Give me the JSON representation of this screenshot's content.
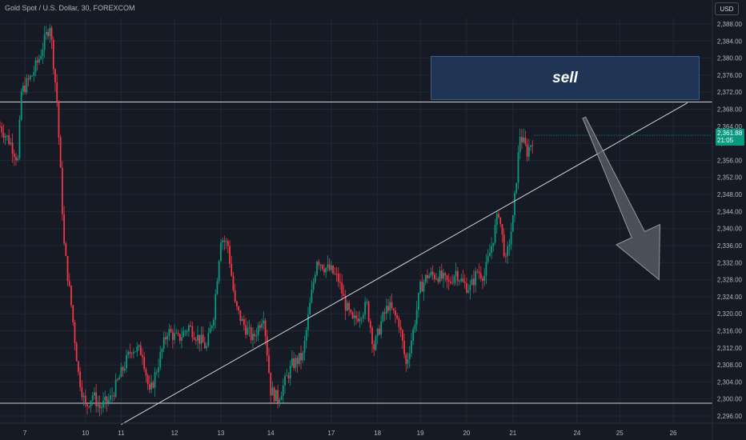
{
  "header": {
    "title": "Gold Spot / U.S. Dollar, 30, FOREXCOM",
    "currency_button": "USD"
  },
  "price_badge": {
    "price": "2,361.88",
    "countdown": "21:05"
  },
  "annotations": {
    "sell_label": "sell"
  },
  "colors": {
    "background": "#161a25",
    "grid": "#232733",
    "up": "#089981",
    "down": "#f23645",
    "axis_text": "#b2b5be",
    "sell_zone": "#203455",
    "arrow": "#5d6168",
    "price_line": "#089981"
  },
  "chart_data": {
    "type": "candlestick",
    "symbol": "Gold Spot / U.S. Dollar",
    "interval": "30",
    "source": "FOREXCOM",
    "y_ticks": [
      "2,388.00",
      "2,384.00",
      "2,380.00",
      "2,376.00",
      "2,372.00",
      "2,368.00",
      "2,364.00",
      "2,360.00",
      "2,356.00",
      "2,352.00",
      "2,348.00",
      "2,344.00",
      "2,340.00",
      "2,336.00",
      "2,332.00",
      "2,328.00",
      "2,324.00",
      "2,320.00",
      "2,316.00",
      "2,312.00",
      "2,308.00",
      "2,304.00",
      "2,300.00",
      "2,296.00"
    ],
    "y_range": [
      2294.5,
      2389.5
    ],
    "x_ticks": [
      "7",
      "10",
      "11",
      "12",
      "13",
      "14",
      "17",
      "18",
      "19",
      "20",
      "21",
      "24",
      "25",
      "26"
    ],
    "x_tick_index": [
      7,
      24,
      34,
      49,
      62,
      76,
      93,
      106,
      118,
      131,
      144,
      162,
      174,
      189
    ],
    "x_range": [
      0,
      200
    ],
    "horizontal_levels": [
      2369.7,
      2299.0
    ],
    "trendline": {
      "from": [
        34,
        2294
      ],
      "to": [
        193,
        2369.5
      ]
    },
    "sell_zone": {
      "x": [
        120,
        196
      ],
      "y": [
        2369.7,
        2379.8
      ],
      "label": "sell"
    },
    "projection_arrow": {
      "from": [
        164,
        2366
      ],
      "to": [
        185,
        2328
      ]
    },
    "last_price": 2361.88,
    "grid": true,
    "waypoints": [
      [
        0,
        2364
      ],
      [
        3,
        2360
      ],
      [
        5,
        2356
      ],
      [
        6,
        2372
      ],
      [
        9,
        2376
      ],
      [
        11,
        2380
      ],
      [
        14,
        2388
      ],
      [
        16,
        2370
      ],
      [
        18,
        2336
      ],
      [
        20,
        2322
      ],
      [
        22,
        2306
      ],
      [
        24,
        2298
      ],
      [
        26,
        2301
      ],
      [
        28,
        2298
      ],
      [
        31,
        2300
      ],
      [
        34,
        2306
      ],
      [
        37,
        2312
      ],
      [
        40,
        2311
      ],
      [
        42,
        2301
      ],
      [
        44,
        2307
      ],
      [
        47,
        2316
      ],
      [
        50,
        2314
      ],
      [
        53,
        2317
      ],
      [
        56,
        2314
      ],
      [
        58,
        2312
      ],
      [
        60,
        2320
      ],
      [
        62,
        2338
      ],
      [
        64,
        2336
      ],
      [
        66,
        2322
      ],
      [
        68,
        2318
      ],
      [
        71,
        2314
      ],
      [
        74,
        2320
      ],
      [
        76,
        2302
      ],
      [
        78,
        2300
      ],
      [
        80,
        2304
      ],
      [
        82,
        2308
      ],
      [
        85,
        2310
      ],
      [
        87,
        2322
      ],
      [
        89,
        2333
      ],
      [
        91,
        2331
      ],
      [
        93,
        2330
      ],
      [
        95,
        2328
      ],
      [
        97,
        2322
      ],
      [
        99,
        2318
      ],
      [
        101,
        2320
      ],
      [
        103,
        2322
      ],
      [
        105,
        2312
      ],
      [
        107,
        2318
      ],
      [
        109,
        2322
      ],
      [
        112,
        2318
      ],
      [
        114,
        2308
      ],
      [
        116,
        2316
      ],
      [
        118,
        2326
      ],
      [
        120,
        2329
      ],
      [
        123,
        2329
      ],
      [
        126,
        2327
      ],
      [
        128,
        2330
      ],
      [
        130,
        2327
      ],
      [
        132,
        2326
      ],
      [
        134,
        2330
      ],
      [
        136,
        2329
      ],
      [
        138,
        2336
      ],
      [
        140,
        2344
      ],
      [
        142,
        2332
      ],
      [
        144,
        2342
      ],
      [
        145,
        2352
      ],
      [
        146,
        2362
      ],
      [
        148,
        2358
      ],
      [
        150,
        2361.88
      ]
    ]
  }
}
